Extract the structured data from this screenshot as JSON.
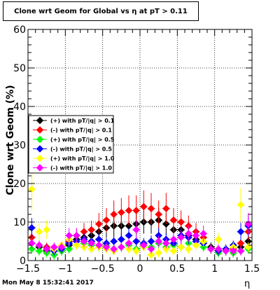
{
  "chart_data": {
    "type": "scatter",
    "title": "Clone wrt Geom for Global vs   η at pT > 0.11",
    "xlabel": "η",
    "ylabel": "Clone wrt Geom (%)",
    "xlim": [
      -1.5,
      1.5
    ],
    "ylim": [
      0,
      60
    ],
    "xticks": [
      -1.5,
      -1,
      -0.5,
      0,
      0.5,
      1,
      1.5
    ],
    "xtick_labels": [
      "−1.5",
      "−1",
      "−0.5",
      "0",
      "0.5",
      "1",
      "1.5"
    ],
    "yticks": [
      0,
      10,
      20,
      30,
      40,
      50,
      60
    ],
    "grid": true,
    "legend_position": "middle-left",
    "series": [
      {
        "name": "(+) with pT/|q| > 0.1",
        "color": "#000000",
        "x": [
          -1.45,
          -1.35,
          -1.25,
          -1.15,
          -1.05,
          -0.95,
          -0.85,
          -0.75,
          -0.65,
          -0.55,
          -0.45,
          -0.35,
          -0.25,
          -0.15,
          -0.05,
          0.05,
          0.15,
          0.25,
          0.35,
          0.45,
          0.55,
          0.65,
          0.75,
          0.85,
          0.95,
          1.05,
          1.15,
          1.25,
          1.35,
          1.45
        ],
        "y": [
          4.5,
          3.5,
          2.5,
          1.5,
          2.5,
          4.0,
          5.5,
          6.0,
          6.5,
          7.5,
          8.5,
          9.0,
          9.0,
          9.0,
          9.5,
          10.0,
          10.0,
          10.5,
          9.5,
          8.0,
          8.0,
          6.5,
          5.5,
          4.5,
          3.5,
          2.5,
          2.5,
          2.0,
          3.5,
          5.0
        ]
      },
      {
        "name": "(-) with pT/|q| > 0.1",
        "color": "#ff0000",
        "x": [
          -1.45,
          -1.35,
          -1.25,
          -1.15,
          -1.05,
          -0.95,
          -0.85,
          -0.75,
          -0.65,
          -0.55,
          -0.45,
          -0.35,
          -0.25,
          -0.15,
          -0.05,
          0.05,
          0.15,
          0.25,
          0.35,
          0.45,
          0.55,
          0.65,
          0.75,
          0.85,
          0.95,
          1.05,
          1.15,
          1.25,
          1.35,
          1.45
        ],
        "y": [
          6.0,
          4.0,
          3.5,
          3.0,
          3.0,
          5.0,
          6.5,
          7.5,
          8.0,
          9.5,
          10.5,
          12.0,
          12.5,
          13.0,
          13.0,
          14.0,
          13.5,
          12.0,
          13.5,
          10.5,
          10.0,
          9.0,
          7.5,
          6.0,
          3.0,
          2.5,
          2.5,
          3.0,
          4.5,
          7.5
        ]
      },
      {
        "name": "(+) with pT/|q| > 0.5",
        "color": "#00ff00",
        "x": [
          -1.45,
          -1.35,
          -1.25,
          -1.15,
          -1.05,
          -0.95,
          -0.85,
          -0.75,
          -0.65,
          -0.55,
          -0.45,
          -0.35,
          -0.25,
          -0.15,
          -0.05,
          0.05,
          0.15,
          0.25,
          0.35,
          0.45,
          0.55,
          0.65,
          0.75,
          0.85,
          0.95,
          1.05,
          1.15,
          1.25,
          1.35,
          1.45
        ],
        "y": [
          3.0,
          2.5,
          2.0,
          1.5,
          2.5,
          3.0,
          4.0,
          4.5,
          4.0,
          3.5,
          4.0,
          3.0,
          3.5,
          4.0,
          3.0,
          4.0,
          3.5,
          4.5,
          3.5,
          4.0,
          3.5,
          4.5,
          4.0,
          3.5,
          3.0,
          2.0,
          2.5,
          2.0,
          2.5,
          3.0
        ]
      },
      {
        "name": "(-) with pT/|q| > 0.5",
        "color": "#0000ff",
        "x": [
          -1.45,
          -1.35,
          -1.25,
          -1.15,
          -1.05,
          -0.95,
          -0.85,
          -0.75,
          -0.65,
          -0.55,
          -0.45,
          -0.35,
          -0.25,
          -0.15,
          -0.05,
          0.05,
          0.15,
          0.25,
          0.35,
          0.45,
          0.55,
          0.65,
          0.75,
          0.85,
          0.95,
          1.05,
          1.15,
          1.25,
          1.35,
          1.45
        ],
        "y": [
          8.5,
          4.0,
          3.0,
          2.5,
          3.0,
          4.5,
          5.0,
          5.5,
          5.0,
          5.5,
          4.5,
          5.0,
          5.5,
          6.5,
          5.0,
          4.5,
          5.0,
          6.5,
          5.5,
          4.5,
          6.5,
          6.0,
          5.0,
          4.5,
          3.0,
          2.5,
          3.0,
          4.0,
          7.5,
          9.0
        ]
      },
      {
        "name": "(+) with pT/|q| > 1.0",
        "color": "#ffff00",
        "x": [
          -1.45,
          -1.35,
          -1.25,
          -1.15,
          -1.05,
          -0.95,
          -0.85,
          -0.75,
          -0.65,
          -0.55,
          -0.45,
          -0.35,
          -0.25,
          -0.15,
          -0.05,
          0.05,
          0.15,
          0.25,
          0.35,
          0.45,
          0.55,
          0.65,
          0.75,
          0.85,
          0.95,
          1.05,
          1.15,
          1.25,
          1.35,
          1.45
        ],
        "y": [
          18.5,
          7.5,
          8.0,
          3.0,
          4.0,
          5.5,
          4.0,
          3.5,
          3.0,
          3.5,
          3.0,
          2.5,
          3.5,
          3.0,
          2.5,
          3.5,
          1.5,
          2.0,
          3.0,
          2.5,
          3.5,
          3.0,
          4.0,
          5.0,
          3.0,
          5.5,
          2.5,
          3.5,
          14.5,
          3.5
        ]
      },
      {
        "name": "(-) with pT/|q| > 1.0",
        "color": "#ff00ff",
        "x": [
          -1.45,
          -1.35,
          -1.25,
          -1.15,
          -1.05,
          -0.95,
          -0.85,
          -0.75,
          -0.65,
          -0.55,
          -0.45,
          -0.35,
          -0.25,
          -0.15,
          -0.05,
          0.05,
          0.15,
          0.25,
          0.35,
          0.45,
          0.55,
          0.65,
          0.75,
          0.85,
          0.95,
          1.05,
          1.15,
          1.25,
          1.35,
          1.45
        ],
        "y": [
          4.5,
          4.0,
          3.0,
          3.5,
          3.5,
          6.5,
          6.5,
          5.0,
          4.5,
          4.0,
          3.5,
          3.0,
          3.5,
          4.5,
          8.0,
          4.0,
          3.0,
          5.0,
          4.5,
          5.5,
          6.0,
          7.0,
          6.5,
          7.0,
          3.0,
          3.0,
          2.5,
          2.5,
          2.5,
          9.5
        ]
      }
    ]
  },
  "footer": {
    "timestamp": "Mon May  8 15:32:41 2017"
  }
}
